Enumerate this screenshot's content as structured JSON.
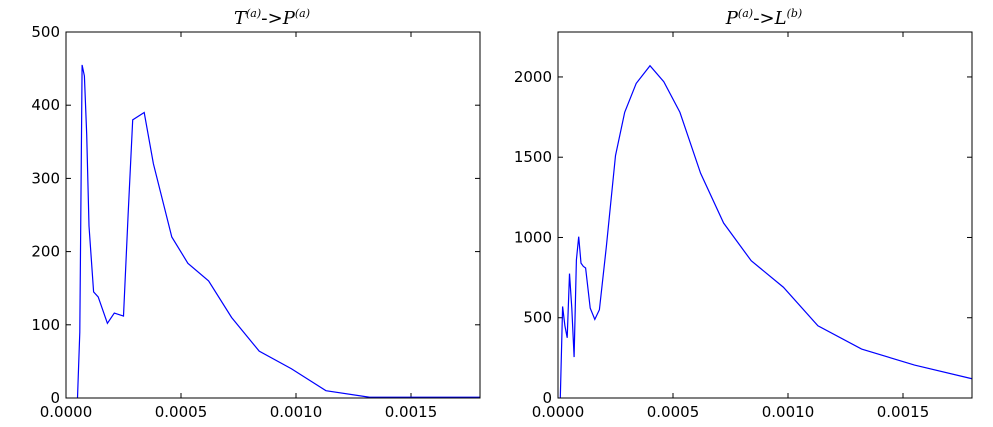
{
  "chart_data": [
    {
      "type": "line",
      "title": {
        "main1": "T",
        "sup1": "(a)",
        "arrow": "->",
        "main2": "P",
        "sup2": "(a)"
      },
      "xlim": [
        0,
        0.0018
      ],
      "ylim": [
        0,
        500
      ],
      "xticks": [
        "0.0000",
        "0.0005",
        "0.0010",
        "0.0015"
      ],
      "xtick_values": [
        0,
        0.0005,
        0.001,
        0.0015
      ],
      "yticks": [
        "0",
        "100",
        "200",
        "300",
        "400",
        "500"
      ],
      "ytick_values": [
        0,
        100,
        200,
        300,
        400,
        500
      ],
      "grid": false,
      "line_color": "#0000ff",
      "series": [
        {
          "x": [
            5e-05,
            6e-05,
            7e-05,
            8e-05,
            9e-05,
            0.0001,
            0.00012,
            0.00014,
            0.00018,
            0.00021,
            0.00025,
            0.00027,
            0.00029,
            0.00034,
            0.00038,
            0.00046,
            0.00053,
            0.00062,
            0.00072,
            0.00084,
            0.00098,
            0.00113,
            0.00132,
            0.00155,
            0.0018
          ],
          "y": [
            0,
            90,
            455,
            440,
            360,
            235,
            145,
            138,
            102,
            116,
            112,
            250,
            380,
            390,
            320,
            220,
            184,
            160,
            110,
            64,
            40,
            10,
            1,
            1,
            1
          ]
        }
      ]
    },
    {
      "type": "line",
      "title": {
        "main1": "P",
        "sup1": "(a)",
        "arrow": "->",
        "main2": "L",
        "sup2": "(b)"
      },
      "xlim": [
        0,
        0.0018
      ],
      "ylim": [
        0,
        2280
      ],
      "xticks": [
        "0.0000",
        "0.0005",
        "0.0010",
        "0.0015"
      ],
      "xtick_values": [
        0,
        0.0005,
        0.001,
        0.0015
      ],
      "yticks": [
        "0",
        "500",
        "1000",
        "1500",
        "2000"
      ],
      "ytick_values": [
        0,
        500,
        1000,
        1500,
        2000
      ],
      "grid": false,
      "line_color": "#0000ff",
      "series": [
        {
          "x": [
            1e-05,
            2e-05,
            3e-05,
            4e-05,
            5e-05,
            6e-05,
            7e-05,
            8e-05,
            9e-05,
            0.0001,
            0.00011,
            0.00012,
            0.00014,
            0.00016,
            0.00018,
            0.00021,
            0.00025,
            0.00029,
            0.00034,
            0.0004,
            0.00046,
            0.00053,
            0.00062,
            0.00072,
            0.00084,
            0.00098,
            0.00113,
            0.00132,
            0.00155,
            0.0018
          ],
          "y": [
            0,
            570,
            450,
            375,
            775,
            560,
            255,
            860,
            1005,
            840,
            820,
            810,
            560,
            490,
            550,
            940,
            1510,
            1780,
            1960,
            2070,
            1970,
            1780,
            1400,
            1090,
            855,
            690,
            450,
            305,
            205,
            120
          ]
        }
      ]
    }
  ]
}
